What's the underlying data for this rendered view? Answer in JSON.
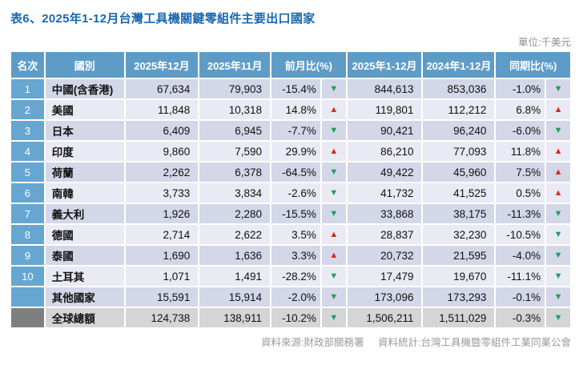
{
  "title": "表6、2025年1-12月台灣工具機關鍵零組件主要出口國家",
  "unit_label": "單位:千美元",
  "icons": {
    "up": "▲",
    "down": "▼"
  },
  "colors": {
    "header_bg": "#5E9CC8",
    "rank_bg": "#67A6D1",
    "row_odd": "#D4D7E8",
    "row_even": "#E9EAF3",
    "total_row_bg": "#D5D5D5",
    "total_rank_bg": "#7F7F7F",
    "up_red": "#DD2A1B",
    "down_green": "#1CA05A",
    "title_blue": "#1768B0"
  },
  "table": {
    "columns": [
      {
        "label": "名次",
        "span": 1
      },
      {
        "label": "國別",
        "span": 1
      },
      {
        "label": "2025年12月",
        "span": 1
      },
      {
        "label": "2025年11月",
        "span": 1
      },
      {
        "label": "前月比(%)",
        "span": 2
      },
      {
        "label": "2025年1-12月",
        "span": 1
      },
      {
        "label": "2024年1-12月",
        "span": 1
      },
      {
        "label": "同期比(%)",
        "span": 2
      }
    ],
    "rows": [
      {
        "rank": "1",
        "country": "中國(含香港)",
        "dec": "67,634",
        "nov": "79,903",
        "mom": "-15.4%",
        "mom_dir": "down",
        "ytd2025": "844,613",
        "ytd2024": "853,036",
        "yoy": "-1.0%",
        "yoy_dir": "down",
        "emphasis": "normal"
      },
      {
        "rank": "2",
        "country": "美國",
        "dec": "11,848",
        "nov": "10,318",
        "mom": "14.8%",
        "mom_dir": "up",
        "ytd2025": "119,801",
        "ytd2024": "112,212",
        "yoy": "6.8%",
        "yoy_dir": "up",
        "emphasis": "normal"
      },
      {
        "rank": "3",
        "country": "日本",
        "dec": "6,409",
        "nov": "6,945",
        "mom": "-7.7%",
        "mom_dir": "down",
        "ytd2025": "90,421",
        "ytd2024": "96,240",
        "yoy": "-6.0%",
        "yoy_dir": "down",
        "emphasis": "normal"
      },
      {
        "rank": "4",
        "country": "印度",
        "dec": "9,860",
        "nov": "7,590",
        "mom": "29.9%",
        "mom_dir": "up",
        "ytd2025": "86,210",
        "ytd2024": "77,093",
        "yoy": "11.8%",
        "yoy_dir": "up",
        "emphasis": "normal"
      },
      {
        "rank": "5",
        "country": "荷蘭",
        "dec": "2,262",
        "nov": "6,378",
        "mom": "-64.5%",
        "mom_dir": "down",
        "ytd2025": "49,422",
        "ytd2024": "45,960",
        "yoy": "7.5%",
        "yoy_dir": "up",
        "emphasis": "normal"
      },
      {
        "rank": "6",
        "country": "南韓",
        "dec": "3,733",
        "nov": "3,834",
        "mom": "-2.6%",
        "mom_dir": "down",
        "ytd2025": "41,732",
        "ytd2024": "41,525",
        "yoy": "0.5%",
        "yoy_dir": "up",
        "emphasis": "normal"
      },
      {
        "rank": "7",
        "country": "義大利",
        "dec": "1,926",
        "nov": "2,280",
        "mom": "-15.5%",
        "mom_dir": "down",
        "ytd2025": "33,868",
        "ytd2024": "38,175",
        "yoy": "-11.3%",
        "yoy_dir": "down",
        "emphasis": "normal"
      },
      {
        "rank": "8",
        "country": "德國",
        "dec": "2,714",
        "nov": "2,622",
        "mom": "3.5%",
        "mom_dir": "up",
        "ytd2025": "28,837",
        "ytd2024": "32,230",
        "yoy": "-10.5%",
        "yoy_dir": "down",
        "emphasis": "normal"
      },
      {
        "rank": "9",
        "country": "泰國",
        "dec": "1,690",
        "nov": "1,636",
        "mom": "3.3%",
        "mom_dir": "up",
        "ytd2025": "20,732",
        "ytd2024": "21,595",
        "yoy": "-4.0%",
        "yoy_dir": "down",
        "emphasis": "normal"
      },
      {
        "rank": "10",
        "country": "土耳其",
        "dec": "1,071",
        "nov": "1,491",
        "mom": "-28.2%",
        "mom_dir": "down",
        "ytd2025": "17,479",
        "ytd2024": "19,670",
        "yoy": "-11.1%",
        "yoy_dir": "down",
        "emphasis": "normal"
      },
      {
        "rank": "",
        "country": "其他國家",
        "dec": "15,591",
        "nov": "15,914",
        "mom": "-2.0%",
        "mom_dir": "down",
        "ytd2025": "173,096",
        "ytd2024": "173,293",
        "yoy": "-0.1%",
        "yoy_dir": "down",
        "emphasis": "normal"
      },
      {
        "rank": "",
        "country": "全球總額",
        "dec": "124,738",
        "nov": "138,911",
        "mom": "-10.2%",
        "mom_dir": "down",
        "ytd2025": "1,506,211",
        "ytd2024": "1,511,029",
        "yoy": "-0.3%",
        "yoy_dir": "down",
        "emphasis": "total"
      }
    ]
  },
  "footer": {
    "source": "資料來源:財政部關務署",
    "stats": "資料統計:台灣工具機暨零組件工業同業公會"
  }
}
